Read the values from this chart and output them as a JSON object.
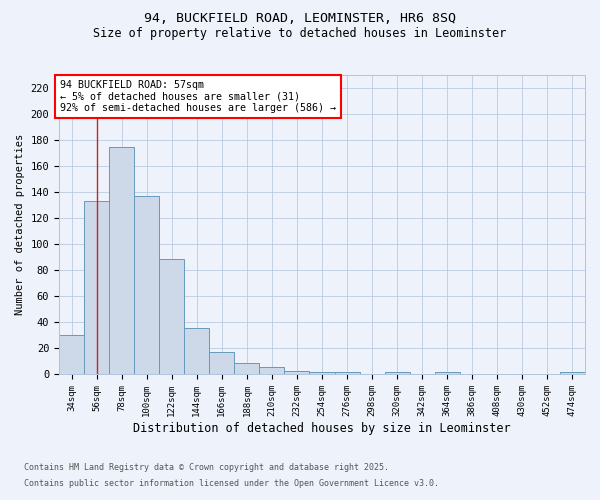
{
  "title_line1": "94, BUCKFIELD ROAD, LEOMINSTER, HR6 8SQ",
  "title_line2": "Size of property relative to detached houses in Leominster",
  "xlabel": "Distribution of detached houses by size in Leominster",
  "ylabel": "Number of detached properties",
  "bar_color": "#cdd9e8",
  "bar_edge_color": "#6699bb",
  "vline_color": "#cc2222",
  "vline_x_index": 1,
  "categories": [
    "34sqm",
    "56sqm",
    "78sqm",
    "100sqm",
    "122sqm",
    "144sqm",
    "166sqm",
    "188sqm",
    "210sqm",
    "232sqm",
    "254sqm",
    "276sqm",
    "298sqm",
    "320sqm",
    "342sqm",
    "364sqm",
    "386sqm",
    "408sqm",
    "430sqm",
    "452sqm",
    "474sqm"
  ],
  "values": [
    30,
    133,
    175,
    137,
    89,
    36,
    17,
    9,
    6,
    3,
    2,
    2,
    0,
    2,
    0,
    2,
    0,
    0,
    0,
    0,
    2
  ],
  "ylim": [
    0,
    230
  ],
  "yticks": [
    0,
    20,
    40,
    60,
    80,
    100,
    120,
    140,
    160,
    180,
    200,
    220
  ],
  "annotation_text": "94 BUCKFIELD ROAD: 57sqm\n← 5% of detached houses are smaller (31)\n92% of semi-detached houses are larger (586) →",
  "footnote1": "Contains HM Land Registry data © Crown copyright and database right 2025.",
  "footnote2": "Contains public sector information licensed under the Open Government Licence v3.0.",
  "background_color": "#eef2fb",
  "grid_color": "#b0c4de"
}
